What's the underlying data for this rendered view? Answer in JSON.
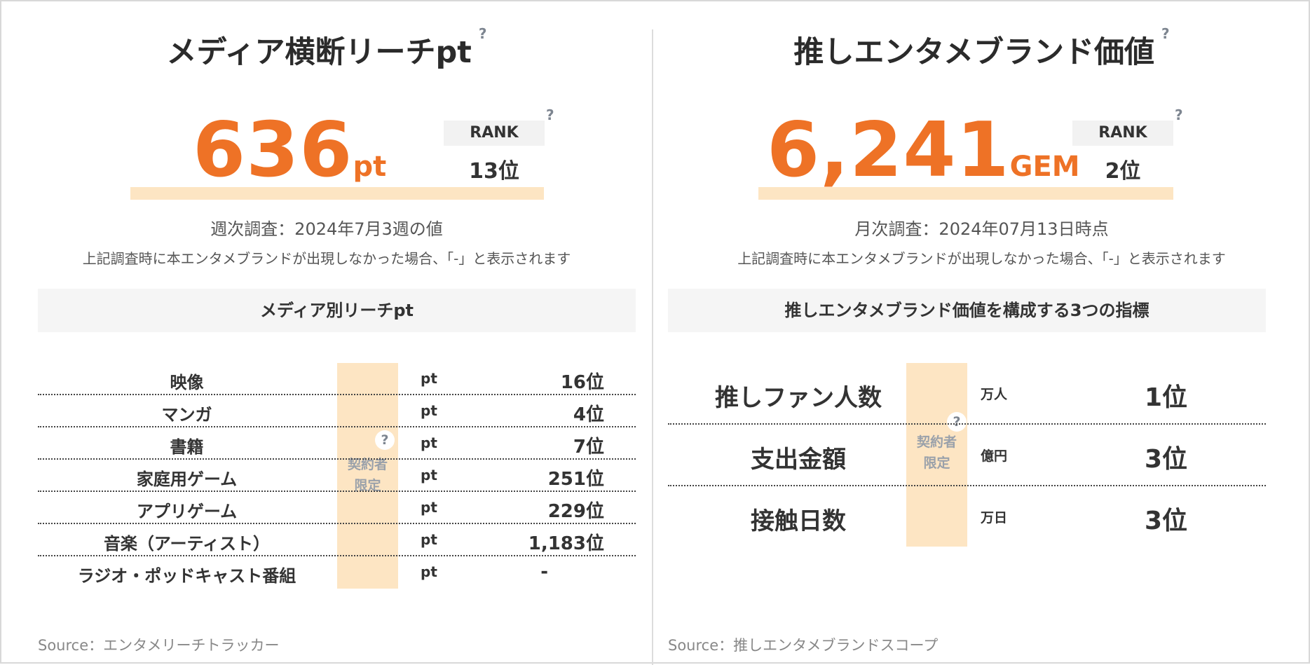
{
  "left": {
    "title": "メディア横断リーチpt",
    "help": "?",
    "score_value": "636",
    "score_unit": "pt",
    "rank_label": "RANK",
    "rank_value": "13位",
    "rank_help": "?",
    "survey": "週次調査：2024年7月3週の値",
    "note": "上記調査時に本エンタメブランドが出現しなかった場合、「-」と表示されます",
    "section_title": "メディア別リーチpt",
    "locked_label_1": "契約者",
    "locked_label_2": "限定",
    "locked_help": "?",
    "rows": [
      {
        "label": "映像",
        "unit": "pt",
        "rank": "16位"
      },
      {
        "label": "マンガ",
        "unit": "pt",
        "rank": "4位"
      },
      {
        "label": "書籍",
        "unit": "pt",
        "rank": "7位"
      },
      {
        "label": "家庭用ゲーム",
        "unit": "pt",
        "rank": "251位"
      },
      {
        "label": "アプリゲーム",
        "unit": "pt",
        "rank": "229位"
      },
      {
        "label": "音楽（アーティスト）",
        "unit": "pt",
        "rank": "1,183位"
      },
      {
        "label": "ラジオ・ポッドキャスト番組",
        "unit": "pt",
        "rank": "-"
      }
    ],
    "source": "Source：エンタメリーチトラッカー"
  },
  "right": {
    "title": "推しエンタメブランド価値",
    "help": "?",
    "score_value": "6,241",
    "score_unit": "GEM",
    "rank_label": "RANK",
    "rank_value": "2位",
    "rank_help": "?",
    "survey": "月次調査：2024年07月13日時点",
    "note": "上記調査時に本エンタメブランドが出現しなかった場合、「-」と表示されます",
    "section_title": "推しエンタメブランド価値を構成する3つの指標",
    "locked_label_1": "契約者",
    "locked_label_2": "限定",
    "locked_help": "?",
    "rows": [
      {
        "label": "推しファン人数",
        "unit": "万人",
        "rank": "1位"
      },
      {
        "label": "支出金額",
        "unit": "億円",
        "rank": "3位"
      },
      {
        "label": "接触日数",
        "unit": "万日",
        "rank": "3位"
      }
    ],
    "source": "Source：推しエンタメブランドスコープ"
  },
  "colors": {
    "accent": "#ee7226",
    "highlight": "#fde5c3",
    "section_bg": "#f5f5f5",
    "help_icon": "#7d8590"
  }
}
